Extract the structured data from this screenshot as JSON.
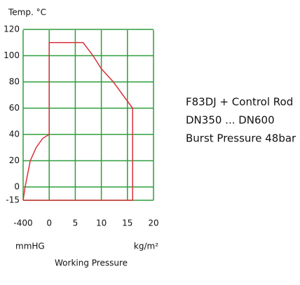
{
  "chart_data": {
    "type": "line",
    "title": "Temp. °C",
    "x_unit_left": "mmHG",
    "x_unit_right": "kg/m²",
    "x_label": "Working Pressure",
    "annotations": [
      "F83DJ + Control Rod",
      "DN350 ... DN600",
      "Burst Pressure 48bar"
    ],
    "xticks": [
      -400,
      0,
      5,
      10,
      15,
      20
    ],
    "yticks": [
      -15,
      0,
      20,
      40,
      60,
      80,
      100,
      120
    ],
    "xlim": [
      -400,
      20
    ],
    "ylim": [
      -15,
      120
    ],
    "grid": true,
    "grid_color": "#2e9e3c",
    "series": [
      {
        "color": "#d9303a",
        "x": [
          -400,
          -370,
          -290,
          -200,
          -100,
          0,
          0,
          6.5,
          8.4,
          10,
          12.3,
          14.5,
          16,
          16,
          -400
        ],
        "y": [
          -15,
          0,
          20,
          30,
          37,
          40,
          110,
          110,
          100,
          90,
          80,
          68,
          60,
          -15,
          -15
        ]
      }
    ]
  }
}
